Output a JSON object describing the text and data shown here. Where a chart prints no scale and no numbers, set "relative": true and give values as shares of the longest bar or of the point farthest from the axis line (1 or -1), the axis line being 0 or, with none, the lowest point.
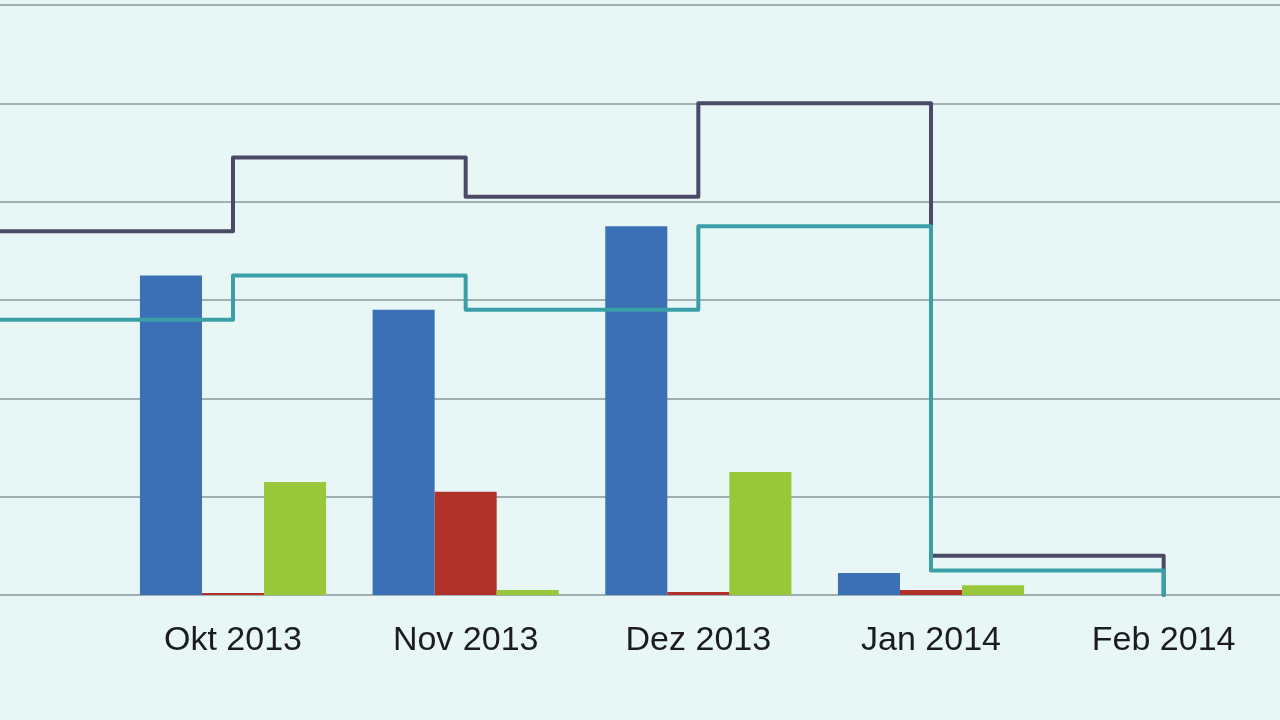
{
  "chart_data": {
    "type": "bar",
    "relative": true,
    "categories": [
      null,
      "Okt 2013",
      "Nov 2013",
      "Dez 2013",
      "Jan 2014",
      "Feb 2014"
    ],
    "series": [
      {
        "color": "#3b6fb6",
        "values": [
          null,
          0.65,
          0.58,
          0.75,
          0.045,
          null
        ]
      },
      {
        "color": "#b0302a",
        "values": [
          null,
          0.004,
          0.21,
          0.006,
          0.01,
          null
        ]
      },
      {
        "color": "#98c83a",
        "values": [
          null,
          0.23,
          0.01,
          0.25,
          0.02,
          null
        ]
      },
      {
        "type": "step",
        "color": "#4b4a66",
        "values": [
          0.74,
          0.89,
          0.81,
          1,
          0.08,
          0
        ]
      },
      {
        "type": "step",
        "color": "#3a9fa6",
        "values": [
          0.56,
          0.65,
          0.58,
          0.75,
          0.05,
          0
        ]
      }
    ],
    "grid": "y"
  }
}
